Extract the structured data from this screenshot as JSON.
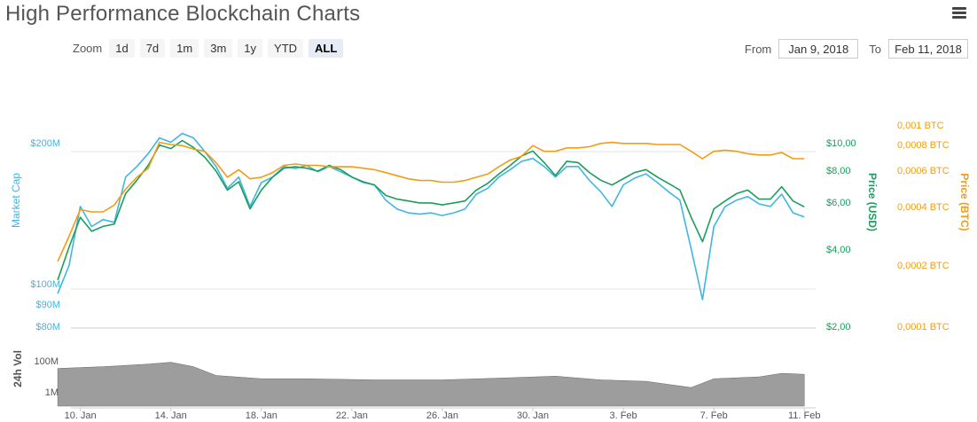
{
  "title": "High Performance Blockchain Charts",
  "menu": {
    "icon": "hamburger-menu-icon"
  },
  "zoom": {
    "label": "Zoom",
    "buttons": [
      "1d",
      "7d",
      "1m",
      "3m",
      "1y",
      "YTD",
      "ALL"
    ],
    "active": "ALL"
  },
  "range": {
    "from_label": "From",
    "from_value": "Jan 9, 2018",
    "to_label": "To",
    "to_value": "Feb 11, 2018"
  },
  "colors": {
    "market_cap": "#3fb6e4",
    "price_usd": "#1a9e5c",
    "price_btc": "#f39c12",
    "volume": "#8c8c8c",
    "grid": "#e6e6e6"
  },
  "chart_data": {
    "type": "line",
    "x_tick_labels": [
      "10. Jan",
      "14. Jan",
      "18. Jan",
      "22. Jan",
      "26. Jan",
      "30. Jan",
      "3. Feb",
      "7. Feb",
      "11. Feb"
    ],
    "axes": {
      "market_cap": {
        "label": "Market Cap",
        "ticks": [
          "$200M",
          "$100M",
          "$90M",
          "$80M"
        ],
        "scale": "log",
        "range": [
          80000000,
          260000000
        ]
      },
      "price_usd": {
        "label": "Price (USD)",
        "ticks": [
          "$10,00",
          "$8,00",
          "$6,00",
          "$4,00",
          "$2,00"
        ],
        "scale": "log",
        "range": [
          2.0,
          10.0
        ]
      },
      "price_btc": {
        "label": "Price (BTC)",
        "ticks": [
          "0,001 BTC",
          "0,0008 BTC",
          "0,0006 BTC",
          "0,0004 BTC",
          "0,0002 BTC",
          "0,0001 BTC"
        ],
        "scale": "log",
        "range": [
          0.0001,
          0.001
        ]
      },
      "volume": {
        "label": "24h Vol",
        "ticks": [
          "100M",
          "1M"
        ],
        "scale": "log"
      }
    },
    "x_range": [
      "2018-01-09",
      "2018-02-11"
    ],
    "series": [
      {
        "name": "Market Cap",
        "key": "market_cap",
        "points": [
          [
            "2018-01-09",
            95000000
          ],
          [
            "2018-01-09T12",
            110000000
          ],
          [
            "2018-01-10",
            150000000
          ],
          [
            "2018-01-10T12",
            135000000
          ],
          [
            "2018-01-11",
            140000000
          ],
          [
            "2018-01-11T12",
            138000000
          ],
          [
            "2018-01-12",
            175000000
          ],
          [
            "2018-01-12T12",
            185000000
          ],
          [
            "2018-01-13",
            198000000
          ],
          [
            "2018-01-13T12",
            215000000
          ],
          [
            "2018-01-14",
            210000000
          ],
          [
            "2018-01-14T12",
            220000000
          ],
          [
            "2018-01-15",
            215000000
          ],
          [
            "2018-01-15T12",
            200000000
          ],
          [
            "2018-01-16",
            185000000
          ],
          [
            "2018-01-16T12",
            165000000
          ],
          [
            "2018-01-17",
            175000000
          ],
          [
            "2018-01-17T12",
            150000000
          ],
          [
            "2018-01-18",
            170000000
          ],
          [
            "2018-01-18T12",
            175000000
          ],
          [
            "2018-01-19",
            185000000
          ],
          [
            "2018-01-19T12",
            183000000
          ],
          [
            "2018-01-20",
            186000000
          ],
          [
            "2018-01-20T12",
            180000000
          ],
          [
            "2018-01-21",
            185000000
          ],
          [
            "2018-01-21T12",
            180000000
          ],
          [
            "2018-01-22",
            175000000
          ],
          [
            "2018-01-22T12",
            170000000
          ],
          [
            "2018-01-23",
            168000000
          ],
          [
            "2018-01-23T12",
            155000000
          ],
          [
            "2018-01-24",
            148000000
          ],
          [
            "2018-01-24T12",
            145000000
          ],
          [
            "2018-01-25",
            144000000
          ],
          [
            "2018-01-25T12",
            145000000
          ],
          [
            "2018-01-26",
            143000000
          ],
          [
            "2018-01-26T12",
            145000000
          ],
          [
            "2018-01-27",
            148000000
          ],
          [
            "2018-01-27T12",
            160000000
          ],
          [
            "2018-01-28",
            165000000
          ],
          [
            "2018-01-28T12",
            175000000
          ],
          [
            "2018-01-29",
            182000000
          ],
          [
            "2018-01-29T12",
            190000000
          ],
          [
            "2018-01-30",
            193000000
          ],
          [
            "2018-01-30T12",
            185000000
          ],
          [
            "2018-01-31",
            175000000
          ],
          [
            "2018-01-31T12",
            185000000
          ],
          [
            "2018-02-01",
            185000000
          ],
          [
            "2018-02-01T12",
            172000000
          ],
          [
            "2018-02-02",
            162000000
          ],
          [
            "2018-02-02T12",
            150000000
          ],
          [
            "2018-02-03",
            168000000
          ],
          [
            "2018-02-03T12",
            174000000
          ],
          [
            "2018-02-04",
            178000000
          ],
          [
            "2018-02-04T12",
            170000000
          ],
          [
            "2018-02-05",
            162000000
          ],
          [
            "2018-02-05T12",
            155000000
          ],
          [
            "2018-02-06",
            120000000
          ],
          [
            "2018-02-06T12",
            92000000
          ],
          [
            "2018-02-07",
            135000000
          ],
          [
            "2018-02-07T12",
            150000000
          ],
          [
            "2018-02-08",
            155000000
          ],
          [
            "2018-02-08T12",
            158000000
          ],
          [
            "2018-02-09",
            152000000
          ],
          [
            "2018-02-09T12",
            150000000
          ],
          [
            "2018-02-10",
            160000000
          ],
          [
            "2018-02-10T12",
            145000000
          ],
          [
            "2018-02-11",
            142000000
          ]
        ]
      },
      {
        "name": "Price (USD)",
        "key": "price_usd",
        "points": [
          [
            "2018-01-09",
            3.0
          ],
          [
            "2018-01-09T12",
            4.0
          ],
          [
            "2018-01-10",
            5.2
          ],
          [
            "2018-01-10T12",
            4.6
          ],
          [
            "2018-01-11",
            4.8
          ],
          [
            "2018-01-11T12",
            4.9
          ],
          [
            "2018-01-12",
            6.4
          ],
          [
            "2018-01-12T12",
            7.2
          ],
          [
            "2018-01-13",
            8.2
          ],
          [
            "2018-01-13T12",
            9.8
          ],
          [
            "2018-01-14",
            9.5
          ],
          [
            "2018-01-14T12",
            10.2
          ],
          [
            "2018-01-15",
            9.6
          ],
          [
            "2018-01-15T12",
            8.8
          ],
          [
            "2018-01-16",
            7.8
          ],
          [
            "2018-01-16T12",
            6.6
          ],
          [
            "2018-01-17",
            7.1
          ],
          [
            "2018-01-17T12",
            5.6
          ],
          [
            "2018-01-18",
            6.6
          ],
          [
            "2018-01-18T12",
            7.4
          ],
          [
            "2018-01-19",
            8.0
          ],
          [
            "2018-01-19T12",
            8.1
          ],
          [
            "2018-01-20",
            8.0
          ],
          [
            "2018-01-20T12",
            7.8
          ],
          [
            "2018-01-21",
            8.2
          ],
          [
            "2018-01-21T12",
            7.9
          ],
          [
            "2018-01-22",
            7.4
          ],
          [
            "2018-01-22T12",
            7.1
          ],
          [
            "2018-01-23",
            6.9
          ],
          [
            "2018-01-23T12",
            6.3
          ],
          [
            "2018-01-24",
            6.1
          ],
          [
            "2018-01-24T12",
            6.0
          ],
          [
            "2018-01-25",
            5.9
          ],
          [
            "2018-01-25T12",
            5.9
          ],
          [
            "2018-01-26",
            5.8
          ],
          [
            "2018-01-26T12",
            5.9
          ],
          [
            "2018-01-27",
            6.0
          ],
          [
            "2018-01-27T12",
            6.6
          ],
          [
            "2018-01-28",
            7.0
          ],
          [
            "2018-01-28T12",
            7.6
          ],
          [
            "2018-01-29",
            8.2
          ],
          [
            "2018-01-29T12",
            8.9
          ],
          [
            "2018-01-30",
            9.3
          ],
          [
            "2018-01-30T12",
            8.4
          ],
          [
            "2018-01-31",
            7.5
          ],
          [
            "2018-01-31T12",
            8.5
          ],
          [
            "2018-02-01",
            8.4
          ],
          [
            "2018-02-01T12",
            7.7
          ],
          [
            "2018-02-02",
            7.2
          ],
          [
            "2018-02-02T12",
            6.9
          ],
          [
            "2018-02-03",
            7.3
          ],
          [
            "2018-02-03T12",
            7.7
          ],
          [
            "2018-02-04",
            7.9
          ],
          [
            "2018-02-04T12",
            7.4
          ],
          [
            "2018-02-05",
            7.0
          ],
          [
            "2018-02-05T12",
            6.6
          ],
          [
            "2018-02-06",
            5.2
          ],
          [
            "2018-02-06T12",
            4.2
          ],
          [
            "2018-02-07",
            5.6
          ],
          [
            "2018-02-07T12",
            6.0
          ],
          [
            "2018-02-08",
            6.4
          ],
          [
            "2018-02-08T12",
            6.6
          ],
          [
            "2018-02-09",
            6.1
          ],
          [
            "2018-02-09T12",
            6.1
          ],
          [
            "2018-02-10",
            6.8
          ],
          [
            "2018-02-10T12",
            6.0
          ],
          [
            "2018-02-11",
            5.7
          ]
        ]
      },
      {
        "name": "Price (BTC)",
        "key": "price_btc",
        "points": [
          [
            "2018-01-09",
            0.00021
          ],
          [
            "2018-01-09T12",
            0.00028
          ],
          [
            "2018-01-10",
            0.00038
          ],
          [
            "2018-01-10T12",
            0.00037
          ],
          [
            "2018-01-11",
            0.00037
          ],
          [
            "2018-01-11T12",
            0.0004
          ],
          [
            "2018-01-12",
            0.00048
          ],
          [
            "2018-01-12T12",
            0.00055
          ],
          [
            "2018-01-13",
            0.00061
          ],
          [
            "2018-01-13T12",
            0.00082
          ],
          [
            "2018-01-14",
            0.0008
          ],
          [
            "2018-01-14T12",
            0.00079
          ],
          [
            "2018-01-15",
            0.00076
          ],
          [
            "2018-01-15T12",
            0.00074
          ],
          [
            "2018-01-16",
            0.00065
          ],
          [
            "2018-01-16T12",
            0.00055
          ],
          [
            "2018-01-17",
            0.0006
          ],
          [
            "2018-01-17T12",
            0.00054
          ],
          [
            "2018-01-18",
            0.00055
          ],
          [
            "2018-01-18T12",
            0.00058
          ],
          [
            "2018-01-19",
            0.00063
          ],
          [
            "2018-01-19T12",
            0.00064
          ],
          [
            "2018-01-20",
            0.00063
          ],
          [
            "2018-01-20T12",
            0.00063
          ],
          [
            "2018-01-21",
            0.00062
          ],
          [
            "2018-01-21T12",
            0.00062
          ],
          [
            "2018-01-22",
            0.00062
          ],
          [
            "2018-01-22T12",
            0.00061
          ],
          [
            "2018-01-23",
            0.0006
          ],
          [
            "2018-01-23T12",
            0.00058
          ],
          [
            "2018-01-24",
            0.00056
          ],
          [
            "2018-01-24T12",
            0.00054
          ],
          [
            "2018-01-25",
            0.00053
          ],
          [
            "2018-01-25T12",
            0.00053
          ],
          [
            "2018-01-26",
            0.00052
          ],
          [
            "2018-01-26T12",
            0.00052
          ],
          [
            "2018-01-27",
            0.00053
          ],
          [
            "2018-01-27T12",
            0.00055
          ],
          [
            "2018-01-28",
            0.00057
          ],
          [
            "2018-01-28T12",
            0.00062
          ],
          [
            "2018-01-29",
            0.00067
          ],
          [
            "2018-01-29T12",
            0.0007
          ],
          [
            "2018-01-30",
            0.00079
          ],
          [
            "2018-01-30T12",
            0.00074
          ],
          [
            "2018-01-31",
            0.00074
          ],
          [
            "2018-01-31T12",
            0.00077
          ],
          [
            "2018-02-01",
            0.00077
          ],
          [
            "2018-02-01T12",
            0.00078
          ],
          [
            "2018-02-02",
            0.00081
          ],
          [
            "2018-02-02T12",
            0.00082
          ],
          [
            "2018-02-03",
            0.00081
          ],
          [
            "2018-02-03T12",
            0.00081
          ],
          [
            "2018-02-04",
            0.00081
          ],
          [
            "2018-02-04T12",
            0.0008
          ],
          [
            "2018-02-05",
            0.0008
          ],
          [
            "2018-02-05T12",
            0.0008
          ],
          [
            "2018-02-06",
            0.00074
          ],
          [
            "2018-02-06T12",
            0.00068
          ],
          [
            "2018-02-07",
            0.00074
          ],
          [
            "2018-02-07T12",
            0.00075
          ],
          [
            "2018-02-08",
            0.00074
          ],
          [
            "2018-02-08T12",
            0.00072
          ],
          [
            "2018-02-09",
            0.00071
          ],
          [
            "2018-02-09T12",
            0.00071
          ],
          [
            "2018-02-10",
            0.00073
          ],
          [
            "2018-02-10T12",
            0.00068
          ],
          [
            "2018-02-11",
            0.00068
          ]
        ]
      },
      {
        "name": "24h Vol",
        "key": "volume",
        "type": "area",
        "points": [
          [
            "2018-01-09",
            30000000
          ],
          [
            "2018-01-11",
            40000000
          ],
          [
            "2018-01-13",
            60000000
          ],
          [
            "2018-01-14",
            80000000
          ],
          [
            "2018-01-15",
            40000000
          ],
          [
            "2018-01-16",
            10000000
          ],
          [
            "2018-01-18",
            6000000
          ],
          [
            "2018-01-20",
            6000000
          ],
          [
            "2018-01-23",
            5000000
          ],
          [
            "2018-01-26",
            5000000
          ],
          [
            "2018-01-29",
            7000000
          ],
          [
            "2018-01-31",
            9000000
          ],
          [
            "2018-02-02",
            5000000
          ],
          [
            "2018-02-04",
            4000000
          ],
          [
            "2018-02-06",
            1500000
          ],
          [
            "2018-02-07",
            6000000
          ],
          [
            "2018-02-09",
            8000000
          ],
          [
            "2018-02-10",
            14000000
          ],
          [
            "2018-02-11",
            12000000
          ]
        ]
      }
    ]
  }
}
